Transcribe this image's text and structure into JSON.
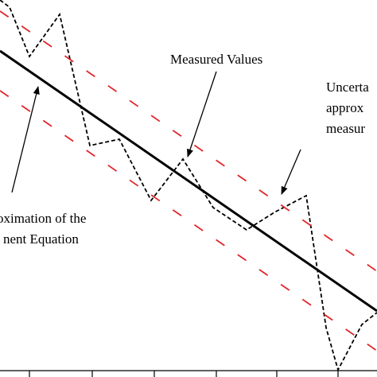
{
  "chart_data": {
    "type": "line",
    "title": "",
    "xlabel": "",
    "ylabel": "",
    "xlim": [
      0,
      474
    ],
    "ylim": [
      0,
      474
    ],
    "x_ticks": [
      37,
      116,
      194,
      272,
      348,
      425
    ],
    "grid": false,
    "colors": {
      "approximation": "#000000",
      "measured": "#000000",
      "uncertainty": "#e0262a"
    },
    "series": [
      {
        "key": "approximation",
        "style": "solid",
        "x": [
          0,
          474
        ],
        "y": [
          410,
          83
        ]
      },
      {
        "key": "measured",
        "style": "dashed",
        "x": [
          0,
          12,
          37,
          75,
          113,
          150,
          190,
          230,
          268,
          310,
          345,
          385,
          410,
          425,
          455,
          474
        ],
        "y": [
          474,
          465,
          403,
          456,
          291,
          299,
          222,
          274,
          213,
          185,
          207,
          228,
          62,
          9,
          66,
          81
        ]
      },
      {
        "key": "uncertainty-upper",
        "style": "dashed",
        "x": [
          0,
          474
        ],
        "y": [
          460,
          133
        ]
      },
      {
        "key": "uncertainty-lower",
        "style": "dashed",
        "x": [
          0,
          474
        ],
        "y": [
          360,
          33
        ]
      }
    ],
    "annotations": {
      "measured": "Measured Values",
      "approximation_line1": "oximation of the",
      "approximation_line2": "nent Equation",
      "uncertainty_line1": "Uncerta",
      "uncertainty_line2": "approx",
      "uncertainty_line3": "measur"
    }
  }
}
